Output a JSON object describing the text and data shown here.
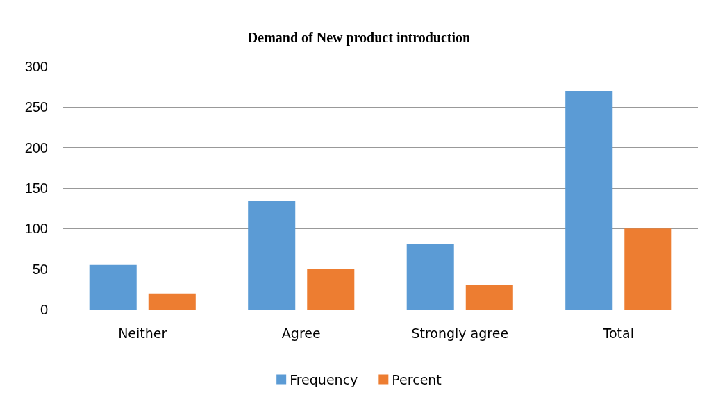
{
  "chart_data": {
    "type": "bar",
    "title": "Demand of New product introduction",
    "categories": [
      "Neither",
      "Agree",
      "Strongly agree",
      "Total"
    ],
    "series": [
      {
        "name": "Frequency",
        "color": "#5b9bd5",
        "values": [
          55,
          134,
          81,
          270
        ]
      },
      {
        "name": "Percent",
        "color": "#ed7d31",
        "values": [
          20,
          50,
          30,
          100
        ]
      }
    ],
    "ylim": [
      0,
      300
    ],
    "yticks": [
      0,
      50,
      100,
      150,
      200,
      250,
      300
    ],
    "grid": "y",
    "legend": "bottom"
  }
}
